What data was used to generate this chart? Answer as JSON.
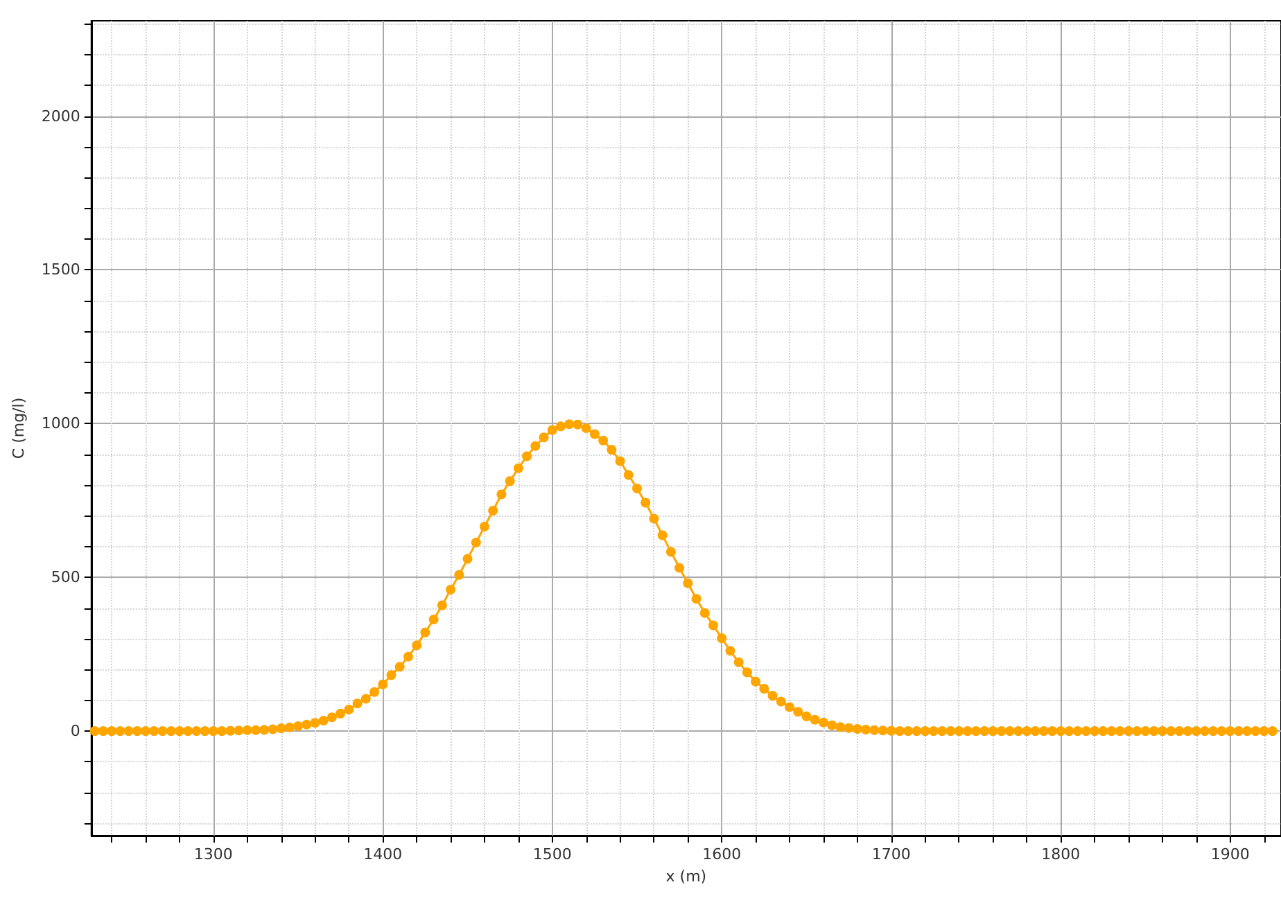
{
  "chart_data": {
    "type": "line",
    "xlabel": "x (m)",
    "ylabel": "C (mg/l)",
    "x": [
      1230,
      1235,
      1240,
      1245,
      1250,
      1255,
      1260,
      1265,
      1270,
      1275,
      1280,
      1285,
      1290,
      1295,
      1300,
      1305,
      1310,
      1315,
      1320,
      1325,
      1330,
      1335,
      1340,
      1345,
      1350,
      1355,
      1360,
      1365,
      1370,
      1375,
      1380,
      1385,
      1390,
      1395,
      1400,
      1405,
      1410,
      1415,
      1420,
      1425,
      1430,
      1435,
      1440,
      1445,
      1450,
      1455,
      1460,
      1465,
      1470,
      1475,
      1480,
      1485,
      1490,
      1495,
      1500,
      1505,
      1510,
      1515,
      1520,
      1525,
      1530,
      1535,
      1540,
      1545,
      1550,
      1555,
      1560,
      1565,
      1570,
      1575,
      1580,
      1585,
      1590,
      1595,
      1600,
      1605,
      1610,
      1615,
      1620,
      1625,
      1630,
      1635,
      1640,
      1645,
      1650,
      1655,
      1660,
      1665,
      1670,
      1675,
      1680,
      1685,
      1690,
      1695,
      1700,
      1705,
      1710,
      1715,
      1720,
      1725,
      1730,
      1735,
      1740,
      1745,
      1750,
      1755,
      1760,
      1765,
      1770,
      1775,
      1780,
      1785,
      1790,
      1795,
      1800,
      1805,
      1810,
      1815,
      1820,
      1825,
      1830,
      1835,
      1840,
      1845,
      1850,
      1855,
      1860,
      1865,
      1870,
      1875,
      1880,
      1885,
      1890,
      1895,
      1900,
      1905,
      1910,
      1915,
      1920,
      1925
    ],
    "series": [
      {
        "color": "#ffa500",
        "values": [
          0,
          0,
          0,
          0,
          0,
          0,
          0,
          0,
          0,
          0,
          0,
          0,
          0,
          0,
          0,
          0,
          1,
          2,
          3,
          3,
          4,
          6,
          9,
          12,
          16,
          21,
          27,
          34,
          45,
          57,
          70,
          90,
          105,
          127,
          152,
          182,
          209,
          242,
          279,
          321,
          363,
          409,
          460,
          508,
          560,
          613,
          665,
          717,
          770,
          813,
          855,
          894,
          927,
          955,
          979,
          991,
          998,
          997,
          985,
          966,
          945,
          915,
          878,
          833,
          789,
          743,
          691,
          637,
          583,
          531,
          481,
          430,
          384,
          344,
          302,
          261,
          224,
          191,
          161,
          138,
          115,
          96,
          78,
          63,
          48,
          37,
          28,
          19,
          13,
          10,
          7,
          5,
          3,
          2,
          1,
          0,
          0,
          0,
          0,
          0,
          0,
          0,
          0,
          0,
          0,
          0,
          0,
          0,
          0,
          0,
          0,
          0,
          0,
          0,
          0,
          0,
          0,
          0,
          0,
          0,
          0,
          0,
          0,
          0,
          0,
          0,
          0,
          0,
          0,
          0,
          0,
          0,
          0,
          0,
          0,
          0,
          0,
          0,
          0,
          0
        ]
      }
    ],
    "xlim": [
      1228,
      1930
    ],
    "ylim": [
      -340,
      2310
    ],
    "xticks": [
      {
        "value": 1240,
        "label": null
      },
      {
        "value": 1260,
        "label": null
      },
      {
        "value": 1280,
        "label": null
      },
      1300,
      {
        "value": 1320,
        "label": null
      },
      {
        "value": 1340,
        "label": null
      },
      {
        "value": 1360,
        "label": null
      },
      {
        "value": 1380,
        "label": null
      },
      1400,
      {
        "value": 1420,
        "label": null
      },
      {
        "value": 1440,
        "label": null
      },
      {
        "value": 1460,
        "label": null
      },
      {
        "value": 1480,
        "label": null
      },
      1500,
      {
        "value": 1520,
        "label": null
      },
      {
        "value": 1540,
        "label": null
      },
      {
        "value": 1560,
        "label": null
      },
      {
        "value": 1580,
        "label": null
      },
      1600,
      {
        "value": 1620,
        "label": null
      },
      {
        "value": 1640,
        "label": null
      },
      {
        "value": 1660,
        "label": null
      },
      {
        "value": 1680,
        "label": null
      },
      1700,
      {
        "value": 1720,
        "label": null
      },
      {
        "value": 1740,
        "label": null
      },
      {
        "value": 1760,
        "label": null
      },
      {
        "value": 1780,
        "label": null
      },
      1800,
      {
        "value": 1820,
        "label": null
      },
      {
        "value": 1840,
        "label": null
      },
      {
        "value": 1860,
        "label": null
      },
      {
        "value": 1880,
        "label": null
      },
      1900,
      {
        "value": 1920,
        "label": null
      }
    ],
    "yticks": [
      {
        "value": -300,
        "label": null
      },
      {
        "value": -200,
        "label": null
      },
      {
        "value": -100,
        "label": null
      },
      0,
      {
        "value": 100,
        "label": null
      },
      {
        "value": 200,
        "label": null
      },
      {
        "value": 300,
        "label": null
      },
      {
        "value": 400,
        "label": null
      },
      500,
      {
        "value": 600,
        "label": null
      },
      {
        "value": 700,
        "label": null
      },
      {
        "value": 800,
        "label": null
      },
      {
        "value": 900,
        "label": null
      },
      1000,
      {
        "value": 1100,
        "label": null
      },
      {
        "value": 1200,
        "label": null
      },
      {
        "value": 1300,
        "label": null
      },
      {
        "value": 1400,
        "label": null
      },
      1500,
      {
        "value": 1600,
        "label": null
      },
      {
        "value": 1700,
        "label": null
      },
      {
        "value": 1800,
        "label": null
      },
      {
        "value": 1900,
        "label": null
      },
      2000,
      {
        "value": 2100,
        "label": null
      },
      {
        "value": 2200,
        "label": null
      },
      {
        "value": 2300,
        "label": null
      }
    ],
    "grid": true,
    "marker": "circle",
    "line_style": "solid"
  }
}
